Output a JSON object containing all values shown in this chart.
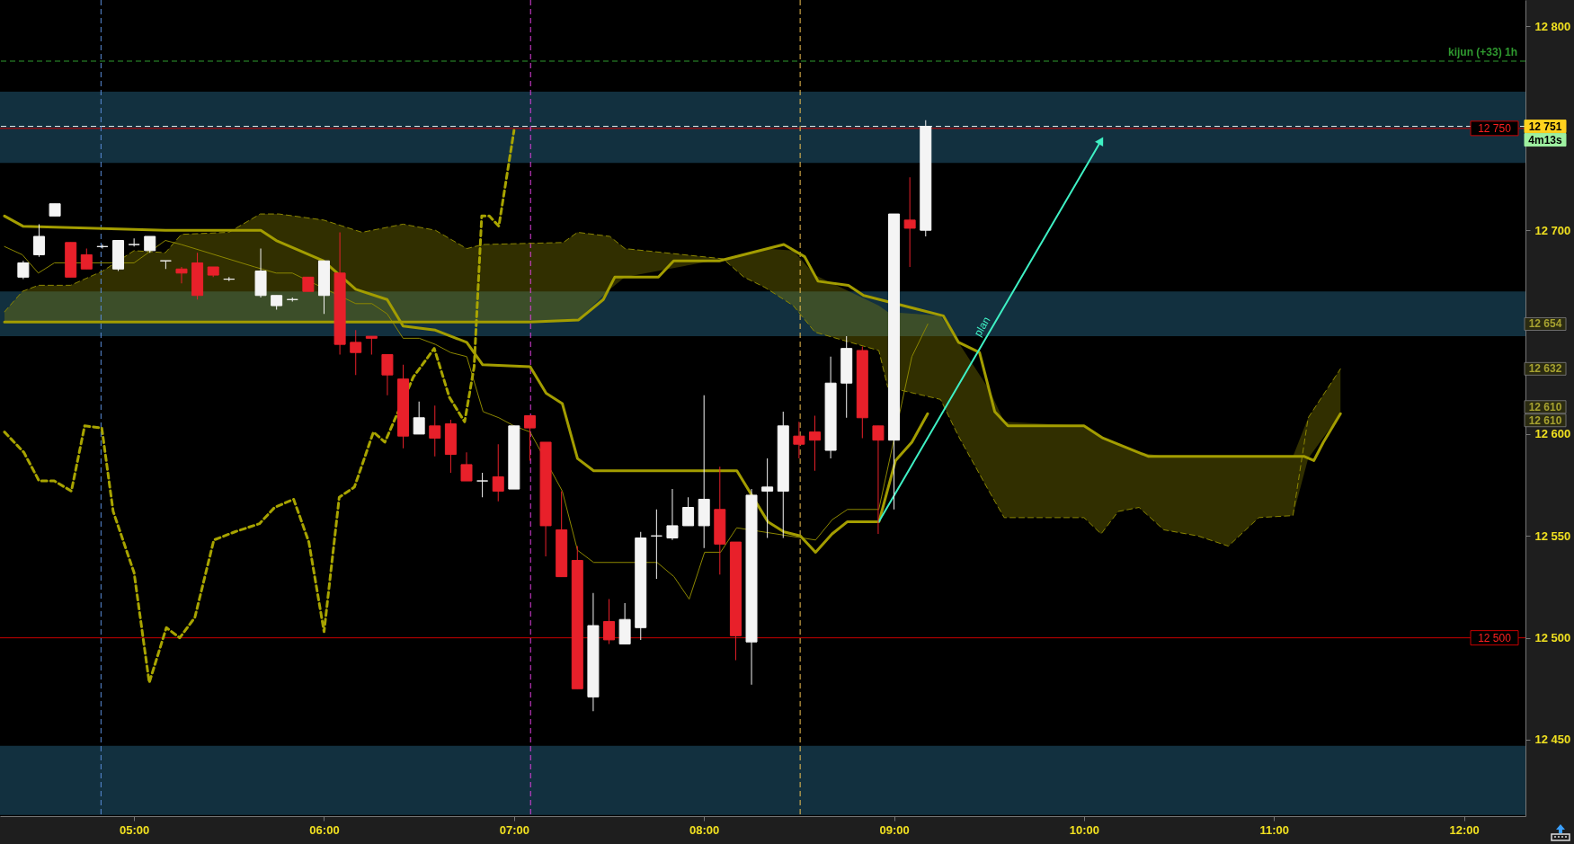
{
  "chart_data": {
    "type": "candlestick",
    "x": [
      4.4167,
      4.5,
      4.5833,
      4.6667,
      4.75,
      4.8333,
      4.9167,
      5.0,
      5.0833,
      5.1667,
      5.25,
      5.3333,
      5.4167,
      5.5,
      5.6667,
      5.75,
      5.8333,
      5.9167,
      6.0,
      6.0833,
      6.1667,
      6.25,
      6.3333,
      6.4167,
      6.5,
      6.5833,
      6.6667,
      6.75,
      6.8333,
      6.9167,
      7.0,
      7.0833,
      7.1667,
      7.25,
      7.3333,
      7.4167,
      7.5,
      7.5833,
      7.6667,
      7.75,
      7.8333,
      7.9167,
      8.0,
      8.0833,
      8.1667,
      8.25,
      8.3333,
      8.4167,
      8.5,
      8.5833,
      8.6667,
      8.75,
      8.8333,
      8.9167,
      9.0,
      9.0833,
      9.1667
    ],
    "ohlc": [
      [
        12677,
        12685,
        12676,
        12684
      ],
      [
        12688,
        12703,
        12687,
        12697
      ],
      [
        12707,
        12713,
        12707,
        12713
      ],
      [
        12694,
        12694,
        12677,
        12677
      ],
      [
        12688,
        12691,
        12681,
        12681
      ],
      [
        12692,
        12693,
        12691,
        12692
      ],
      [
        12681,
        12695,
        12680,
        12695
      ],
      [
        12693,
        12696,
        12692,
        12693
      ],
      [
        12690,
        12697,
        12689,
        12697
      ],
      [
        12685,
        12685,
        12681,
        12685
      ],
      [
        12681,
        12682,
        12674,
        12679
      ],
      [
        12684,
        12689,
        12666,
        12668
      ],
      [
        12682,
        12682,
        12677,
        12678
      ],
      [
        12676,
        12677,
        12675,
        12676
      ],
      [
        12668,
        12691,
        12667,
        12680
      ],
      [
        12663,
        12668,
        12661,
        12668
      ],
      [
        12666,
        12667,
        12665,
        12666
      ],
      [
        12677,
        12677,
        12670,
        12670
      ],
      [
        12668,
        12685,
        12659,
        12685
      ],
      [
        12679,
        12699,
        12639,
        12644
      ],
      [
        12645,
        12651,
        12629,
        12640
      ],
      [
        12648,
        12648,
        12639,
        12647
      ],
      [
        12639,
        12639,
        12619,
        12629
      ],
      [
        12627,
        12634,
        12593,
        12599
      ],
      [
        12600,
        12616,
        12600,
        12608
      ],
      [
        12604,
        12614,
        12589,
        12598
      ],
      [
        12605,
        12607,
        12581,
        12590
      ],
      [
        12585,
        12591,
        12577,
        12577
      ],
      [
        12577,
        12581,
        12569,
        12577
      ],
      [
        12579,
        12595,
        12567,
        12572
      ],
      [
        12573,
        12604,
        12573,
        12604
      ],
      [
        12609,
        12609,
        12587,
        12603
      ],
      [
        12596,
        12596,
        12540,
        12555
      ],
      [
        12553,
        12572,
        12530,
        12530
      ],
      [
        12538,
        12545,
        12475,
        12475
      ],
      [
        12471,
        12522,
        12464,
        12506
      ],
      [
        12508,
        12519,
        12497,
        12499
      ],
      [
        12497,
        12517,
        12497,
        12509
      ],
      [
        12505,
        12552,
        12499,
        12549
      ],
      [
        12550,
        12563,
        12529,
        12550
      ],
      [
        12549,
        12573,
        12548,
        12555
      ],
      [
        12555,
        12569,
        12555,
        12564
      ],
      [
        12555,
        12619,
        12544,
        12568
      ],
      [
        12563,
        12584,
        12531,
        12546
      ],
      [
        12547,
        12547,
        12489,
        12501
      ],
      [
        12498,
        12573,
        12477,
        12570
      ],
      [
        12572,
        12588,
        12549,
        12574
      ],
      [
        12572,
        12611,
        12549,
        12604
      ],
      [
        12599,
        12606,
        12588,
        12595
      ],
      [
        12601,
        12609,
        12582,
        12597
      ],
      [
        12592,
        12638,
        12588,
        12625
      ],
      [
        12625,
        12648,
        12608,
        12642
      ],
      [
        12641,
        12643,
        12598,
        12608
      ],
      [
        12604,
        12604,
        12551,
        12597
      ],
      [
        12597,
        12708,
        12563,
        12708
      ],
      [
        12705,
        12726,
        12682,
        12701
      ],
      [
        12700,
        12754,
        12697,
        12751
      ]
    ],
    "series": [
      {
        "type": "line",
        "color": "#8c8700",
        "line_style": "solid",
        "x": [
          4.318,
          4.412,
          4.496,
          4.581,
          5.0,
          5.165,
          5.249,
          5.635,
          5.748,
          5.833,
          6.167,
          6.252,
          6.332,
          6.416,
          6.501,
          6.586,
          6.666,
          6.751,
          6.837,
          6.92,
          7.0,
          7.085,
          7.254,
          7.334,
          7.419,
          7.753,
          7.842,
          7.922,
          8.003,
          8.087,
          8.172,
          8.587,
          8.675,
          8.755,
          8.92,
          9.094,
          9.178
        ],
        "values": [
          12692,
          12688,
          12679,
          12684,
          12684,
          12695,
          12693,
          12682,
          12679,
          12679,
          12664,
          12664,
          12659,
          12647,
          12647,
          12644,
          12640,
          12638,
          12611,
          12608,
          12604,
          12601,
          12572,
          12543,
          12537,
          12537,
          12530,
          12519,
          12542,
          12542,
          12554,
          12548,
          12558,
          12563,
          12563,
          12638,
          12654
        ]
      },
      {
        "type": "line",
        "color": "#8c8700",
        "line_style": "dashed",
        "x": [
          4.318,
          4.412,
          4.496,
          4.666,
          4.835,
          5.0,
          5.165,
          5.249,
          5.499,
          5.664,
          5.762,
          5.998,
          6.2,
          6.416,
          6.586,
          6.751,
          6.835,
          7.259,
          7.334,
          7.504,
          7.584,
          8.1,
          8.21,
          8.32,
          8.47,
          8.584,
          8.92,
          8.967,
          9.245,
          9.339,
          9.5,
          9.58,
          10.0,
          10.09,
          10.18,
          10.29,
          10.42,
          10.6,
          10.76,
          10.92,
          11.1,
          11.18,
          11.35
        ],
        "values": [
          12660,
          12670,
          12673,
          12673,
          12680,
          12690,
          12689,
          12698,
          12699,
          12708,
          12708,
          12705,
          12699,
          12703,
          12700,
          12691,
          12693,
          12694,
          12699,
          12697,
          12691,
          12686,
          12677,
          12672,
          12663,
          12650,
          12641,
          12623,
          12617,
          12599,
          12572,
          12559,
          12559,
          12551,
          12562,
          12564,
          12553,
          12550,
          12545,
          12559,
          12560,
          12608,
          12632
        ],
        "lower": [
          12655,
          12655,
          12655,
          12655,
          12655,
          12655,
          12655,
          12655,
          12655,
          12655,
          12655,
          12655,
          12655,
          12655,
          12655,
          12655,
          12655,
          12656,
          12656,
          12671,
          12677,
          12686,
          12677,
          12672,
          12663,
          12650,
          12641,
          12623,
          12617,
          12599,
          12572,
          12559,
          12559,
          12551,
          12562,
          12564,
          12553,
          12550,
          12545,
          12559,
          12560,
          12588,
          12610
        ],
        "upper": [
          12660,
          12670,
          12673,
          12673,
          12680,
          12690,
          12689,
          12698,
          12699,
          12708,
          12708,
          12705,
          12699,
          12703,
          12700,
          12691,
          12693,
          12694,
          12699,
          12697,
          12691,
          12686,
          12688,
          12691,
          12690,
          12678,
          12663,
          12660,
          12658,
          12645,
          12622,
          12606,
          12604,
          12599,
          12595,
          12591,
          12589,
          12589,
          12589,
          12589,
          12589,
          12608,
          12632
        ]
      },
      {
        "type": "line",
        "color": "#a39d00",
        "line_style": "solid",
        "x": [
          4.318,
          4.415,
          5.165,
          5.667,
          5.748,
          5.996,
          6.167,
          6.332,
          6.416,
          6.586,
          6.751,
          6.835,
          7.085,
          7.169,
          7.254,
          7.334,
          7.419,
          8.173,
          8.336,
          8.421,
          8.507,
          8.587,
          8.674,
          8.755,
          8.921,
          9.008,
          9.094,
          9.177
        ],
        "values": [
          12707,
          12702,
          12700,
          12700,
          12695,
          12685,
          12671,
          12666,
          12653,
          12651,
          12645,
          12634,
          12633,
          12620,
          12615,
          12588,
          12582,
          12582,
          12557,
          12552,
          12550,
          12542,
          12551,
          12557,
          12557,
          12587,
          12596,
          12610
        ]
      },
      {
        "type": "line",
        "color": "#a39d00",
        "line_style": "solid",
        "x": [
          4.318,
          7.08,
          7.34,
          7.47,
          7.53,
          7.76,
          7.84,
          8.08,
          8.42,
          8.53,
          8.6,
          8.76,
          8.84,
          9.26,
          9.34,
          9.45,
          9.53,
          9.6,
          10.0,
          10.1,
          10.34,
          11.16,
          11.21,
          11.26,
          11.35
        ],
        "values": [
          12655,
          12655,
          12656,
          12666,
          12677,
          12677,
          12685,
          12685,
          12693,
          12687,
          12675,
          12673,
          12668,
          12658,
          12645,
          12640,
          12611,
          12604,
          12604,
          12598,
          12589,
          12589,
          12587,
          12596,
          12610
        ]
      },
      {
        "type": "line",
        "color": "#a8a400",
        "line_style": "dashed",
        "x": [
          4.318,
          4.42,
          4.5,
          4.58,
          4.67,
          4.74,
          4.83,
          4.89,
          5.0,
          5.08,
          5.17,
          5.24,
          5.32,
          5.42,
          5.53,
          5.66,
          5.74,
          5.84,
          5.92,
          6.0,
          6.08,
          6.16,
          6.26,
          6.32,
          6.47,
          6.58,
          6.66,
          6.74,
          6.79,
          6.83,
          6.87,
          6.92,
          7.0
        ],
        "values": [
          12601,
          12591,
          12577,
          12577,
          12572,
          12604,
          12603,
          12562,
          12532,
          12478,
          12505,
          12500,
          12510,
          12548,
          12552,
          12556,
          12564,
          12568,
          12547,
          12503,
          12569,
          12574,
          12601,
          12596,
          12628,
          12642,
          12618,
          12606,
          12633,
          12707,
          12707,
          12702,
          12749
        ]
      },
      {
        "type": "line",
        "color": "#3ff0c4",
        "line_style": "solid",
        "x": [
          8.92,
          10.09
        ],
        "values": [
          12557,
          12744
        ]
      }
    ],
    "ref_lines": [
      {
        "axis": "y",
        "value": 12783,
        "label": "kijun (+33) 1h",
        "color": "#2f9a2f",
        "line_style": "dashed"
      },
      {
        "axis": "y",
        "value": 12751,
        "color": "#e6f2f2",
        "line_style": "dashed"
      },
      {
        "axis": "y",
        "value": 12750,
        "label": "12 750",
        "color": "#c80000",
        "line_style": "solid"
      },
      {
        "axis": "y",
        "value": 12500,
        "label": "12 500",
        "color": "#c80000",
        "line_style": "solid"
      },
      {
        "axis": "x",
        "value": 4.826,
        "color": "#5b8dd9",
        "line_style": "dashed"
      },
      {
        "axis": "x",
        "value": 7.087,
        "color": "#e040e0",
        "line_style": "dashed"
      },
      {
        "axis": "x",
        "value": 8.506,
        "color": "#f0c050",
        "line_style": "dashed"
      }
    ],
    "bands": [
      {
        "axis": "y",
        "from": 12733,
        "to": 12768,
        "color": "#12303f"
      },
      {
        "axis": "y",
        "from": 12648,
        "to": 12670,
        "color": "#12303f"
      },
      {
        "axis": "y",
        "from": 12413,
        "to": 12447,
        "color": "#12303f"
      }
    ],
    "annotations": [
      "12 751",
      "12 654",
      "12 632",
      "12 610",
      "12 610",
      "4m13s",
      "plan"
    ],
    "xlim": [
      4.318,
      12.3
    ],
    "xticks": [
      {
        "value": 5,
        "label": "05:00"
      },
      {
        "value": 6,
        "label": "06:00"
      },
      {
        "value": 7,
        "label": "07:00"
      },
      {
        "value": 8,
        "label": "08:00"
      },
      {
        "value": 9,
        "label": "09:00"
      },
      {
        "value": 10,
        "label": "10:00"
      },
      {
        "value": 11,
        "label": "11:00"
      },
      {
        "value": 12,
        "label": "12:00"
      }
    ],
    "ylim": [
      12412.5,
      12813
    ],
    "yticks": [
      {
        "value": 12450,
        "label": "12 450"
      },
      {
        "value": 12500,
        "label": "12 500"
      },
      {
        "value": 12550,
        "label": "12 550"
      },
      {
        "value": 12600,
        "label": "12 600"
      },
      {
        "value": 12700,
        "label": "12 700"
      },
      {
        "value": 12800,
        "label": "12 800"
      }
    ],
    "grid": false
  }
}
